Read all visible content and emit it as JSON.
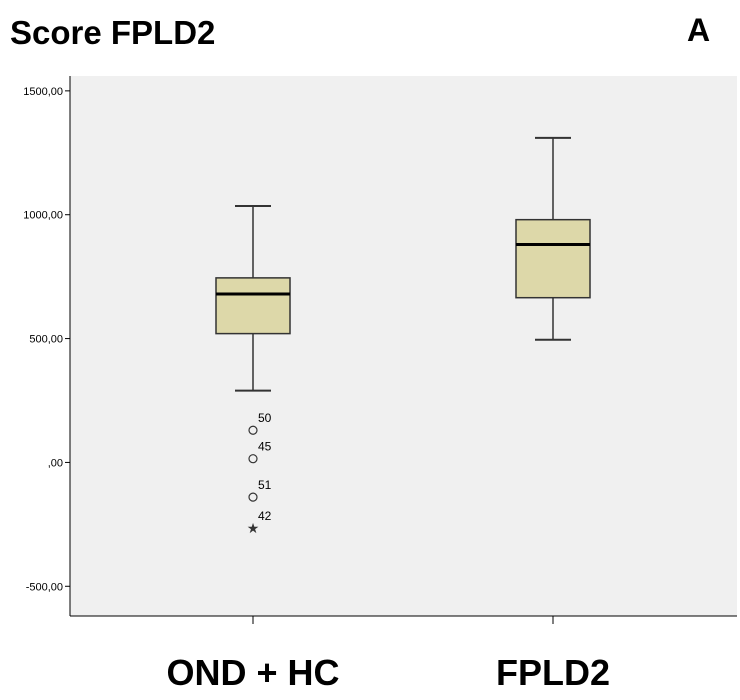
{
  "chart_data": {
    "type": "boxplot",
    "title": "Score FPLD2",
    "panel_label": "A",
    "xlabel": "",
    "ylabel": "",
    "ylim": [
      -620,
      1560
    ],
    "y_ticks": [
      -500,
      0,
      500,
      1000,
      1500
    ],
    "y_tick_labels": [
      "-500,00",
      ",00",
      "500,00",
      "1000,00",
      "1500,00"
    ],
    "categories": [
      "OND + HC",
      "FPLD2"
    ],
    "boxes": [
      {
        "category": "OND + HC",
        "whisker_low": 290,
        "q1": 520,
        "median": 680,
        "q3": 745,
        "whisker_high": 1035,
        "outliers": [
          {
            "label": "50",
            "value": 130,
            "marker": "circle"
          },
          {
            "label": "45",
            "value": 15,
            "marker": "circle"
          },
          {
            "label": "51",
            "value": -140,
            "marker": "circle"
          },
          {
            "label": "42",
            "value": -265,
            "marker": "star"
          }
        ]
      },
      {
        "category": "FPLD2",
        "whisker_low": 495,
        "q1": 665,
        "median": 880,
        "q3": 980,
        "whisker_high": 1310,
        "outliers": []
      }
    ],
    "grid": false,
    "colors": {
      "plot_background": "#f0f0f0",
      "box_fill": "#ddd8a9",
      "box_stroke": "#333333",
      "median_stroke": "#000000"
    }
  }
}
